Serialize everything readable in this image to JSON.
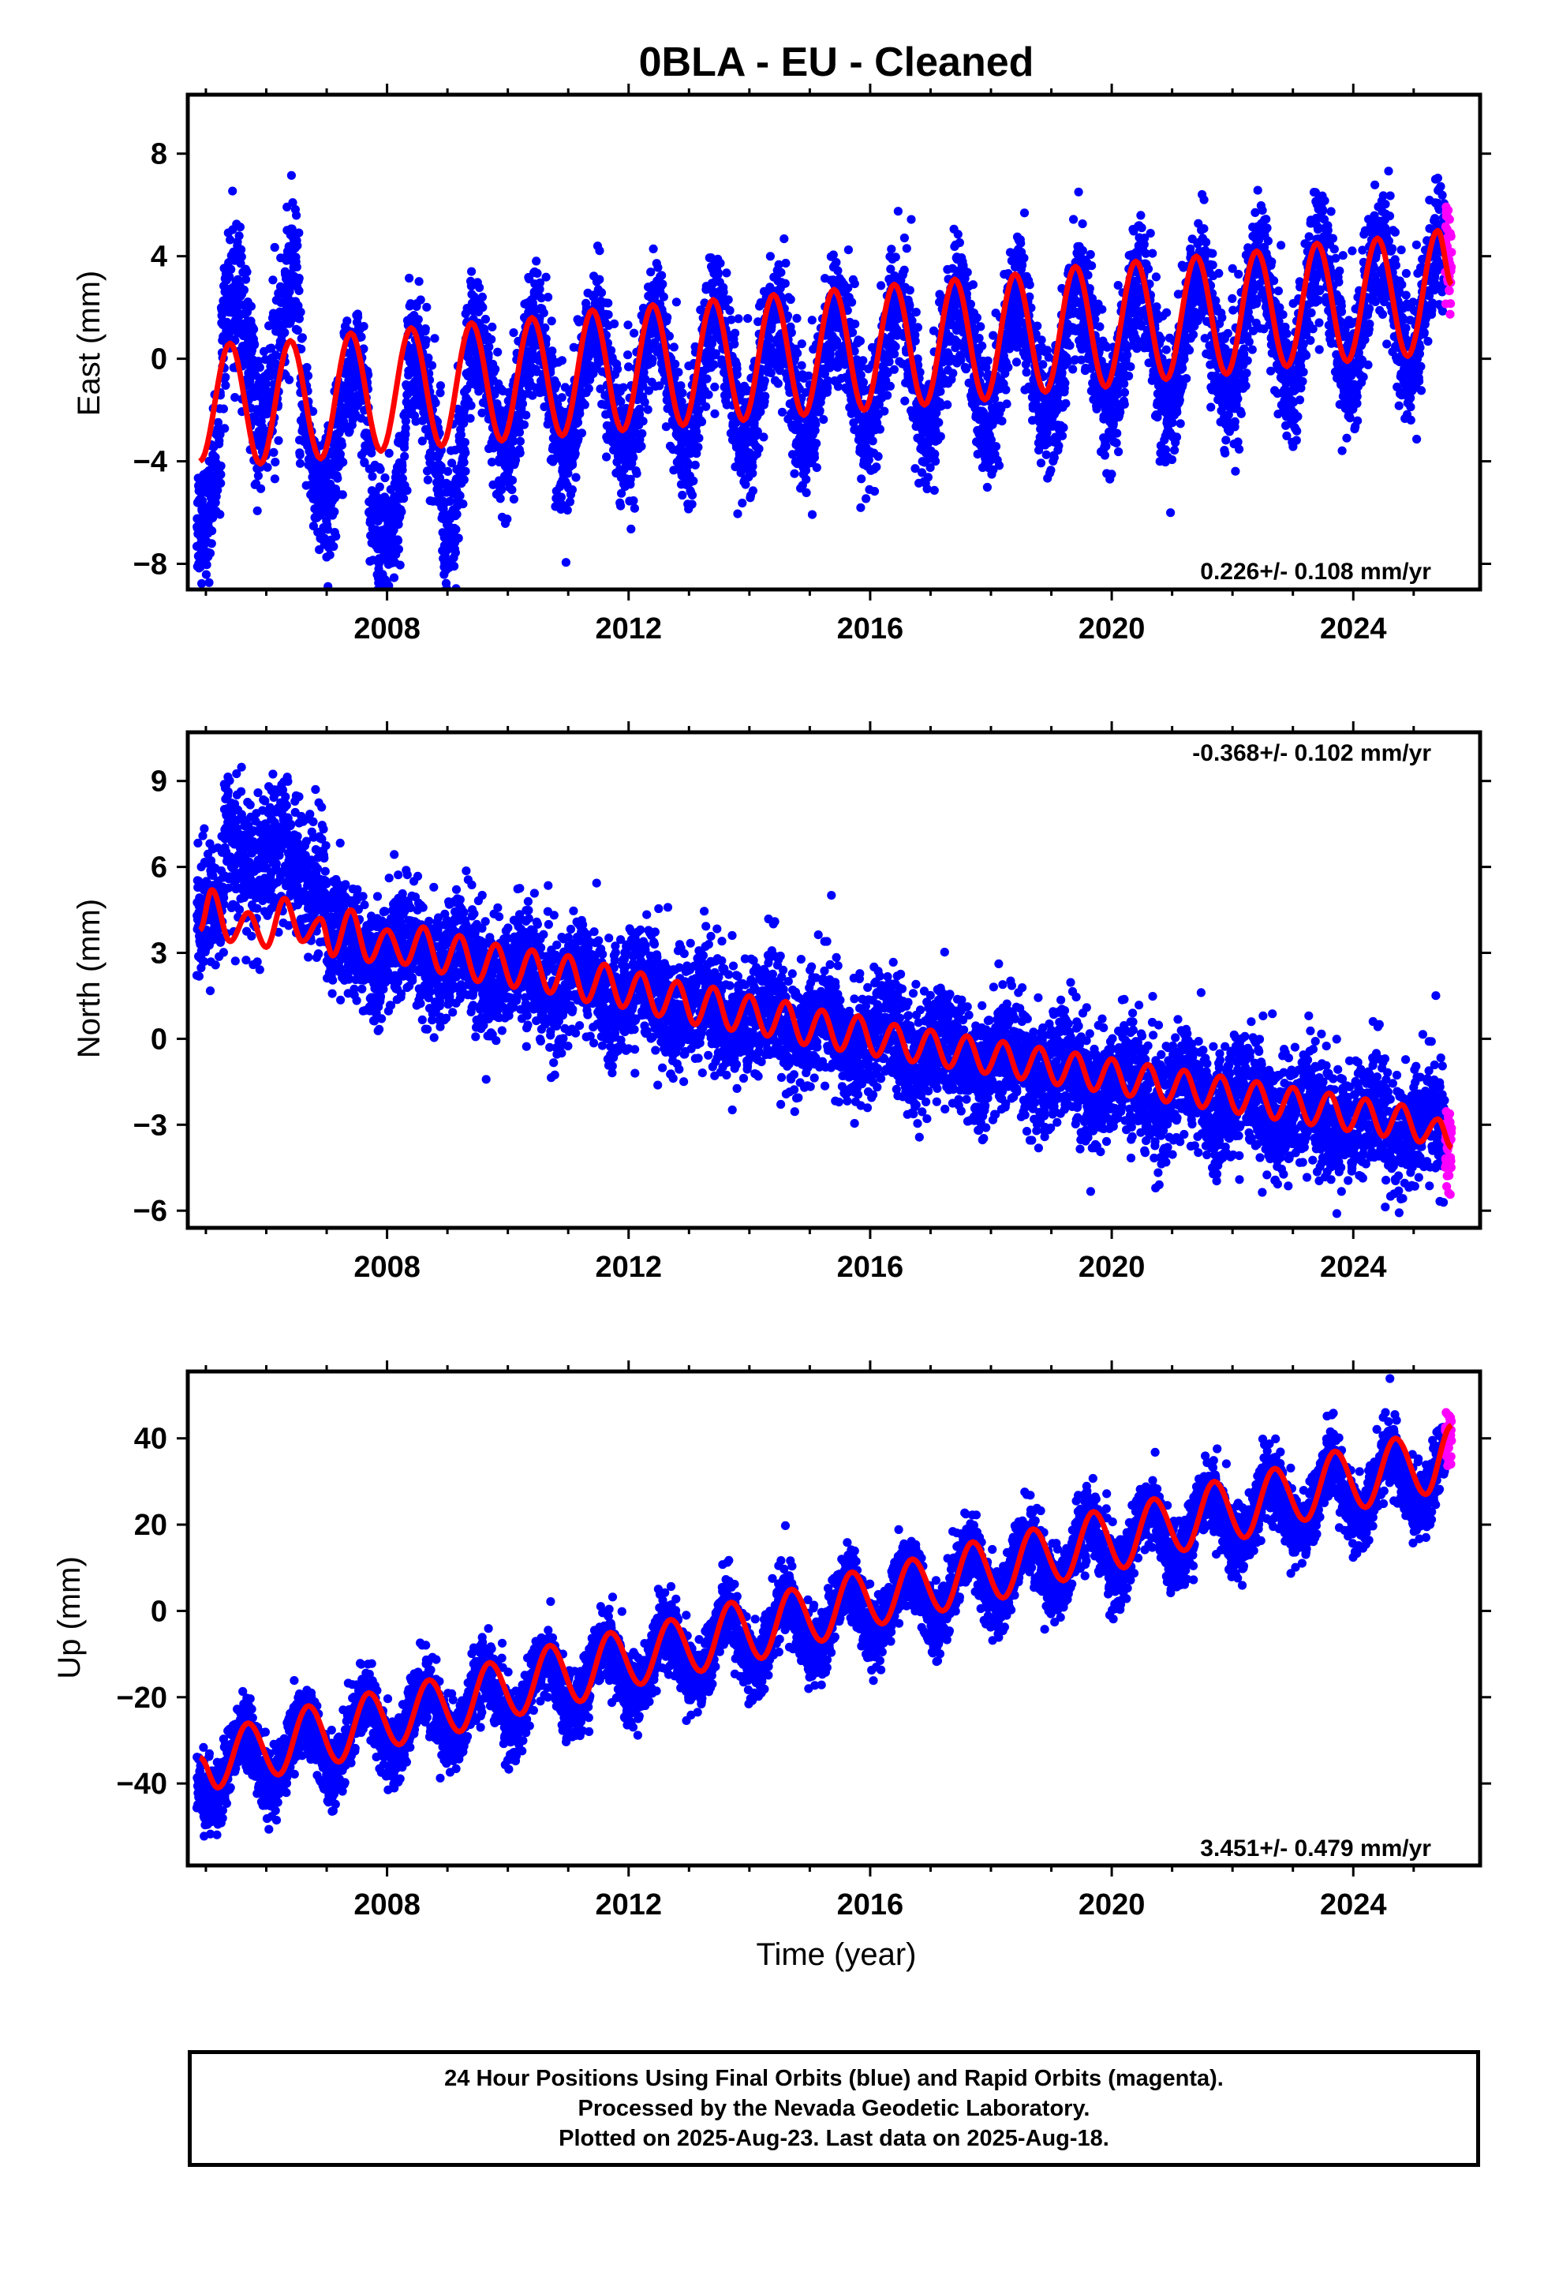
{
  "figure": {
    "title": "0BLA  - EU - Cleaned",
    "footer": [
      "24 Hour Positions Using Final Orbits (blue) and Rapid Orbits (magenta).",
      "Processed by the Nevada Geodetic Laboratory.",
      "Plotted on 2025-Aug-23. Last data on 2025-Aug-18."
    ]
  },
  "colors": {
    "final_orbits": "#0000ff",
    "rapid_orbits": "#ff00ff",
    "model_fit": "#ff0000",
    "frame": "#000000"
  },
  "chart_data": [
    {
      "type": "scatter",
      "name": "east",
      "ylabel": "East (mm)",
      "xlabel": "",
      "xlim": [
        2004.7,
        2026.1
      ],
      "ylim": [
        -9.0,
        10.3
      ],
      "xticks": [
        2008,
        2012,
        2016,
        2020,
        2024
      ],
      "yticks": [
        -8,
        -4,
        0,
        4,
        8
      ],
      "rate_label": "0.226+/- 0.108 mm/yr",
      "rate_position": "bottom-right",
      "data_start": 2004.85,
      "data_end": 2025.63,
      "rapid_start": 2025.52,
      "trend_points": [
        [
          2004.85,
          -4.0
        ],
        [
          2007.0,
          -3.0
        ],
        [
          2010.0,
          -1.4
        ],
        [
          2015.0,
          -0.5
        ],
        [
          2020.0,
          0.3
        ],
        [
          2025.63,
          2.6
        ]
      ],
      "seasonal_amplitude": 2.5,
      "seasonal_peak": 0.45,
      "scatter_sd": 1.25,
      "fit_curve": [
        [
          2004.9,
          -4.0
        ],
        [
          2005.4,
          0.6
        ],
        [
          2005.9,
          -4.1
        ],
        [
          2006.4,
          0.7
        ],
        [
          2006.9,
          -3.9
        ],
        [
          2007.4,
          1.0
        ],
        [
          2007.9,
          -3.6
        ],
        [
          2008.4,
          1.2
        ],
        [
          2008.9,
          -3.4
        ],
        [
          2009.4,
          1.4
        ],
        [
          2009.9,
          -3.2
        ],
        [
          2010.4,
          1.6
        ],
        [
          2010.9,
          -3.0
        ],
        [
          2011.4,
          1.9
        ],
        [
          2011.9,
          -2.8
        ],
        [
          2012.4,
          2.1
        ],
        [
          2012.9,
          -2.6
        ],
        [
          2013.4,
          2.3
        ],
        [
          2013.9,
          -2.4
        ],
        [
          2014.4,
          2.5
        ],
        [
          2014.9,
          -2.2
        ],
        [
          2015.4,
          2.7
        ],
        [
          2015.9,
          -2.0
        ],
        [
          2016.4,
          2.9
        ],
        [
          2016.9,
          -1.8
        ],
        [
          2017.4,
          3.1
        ],
        [
          2017.9,
          -1.6
        ],
        [
          2018.4,
          3.3
        ],
        [
          2018.9,
          -1.3
        ],
        [
          2019.4,
          3.6
        ],
        [
          2019.9,
          -1.1
        ],
        [
          2020.4,
          3.8
        ],
        [
          2020.9,
          -0.8
        ],
        [
          2021.4,
          4.0
        ],
        [
          2021.9,
          -0.6
        ],
        [
          2022.4,
          4.2
        ],
        [
          2022.9,
          -0.3
        ],
        [
          2023.4,
          4.5
        ],
        [
          2023.9,
          -0.1
        ],
        [
          2024.4,
          4.7
        ],
        [
          2024.9,
          0.1
        ],
        [
          2025.4,
          5.0
        ],
        [
          2025.63,
          2.9
        ]
      ],
      "outlier_segments": [
        {
          "x": [
            2005.25,
            2006.55
          ],
          "offset": 3.8
        },
        {
          "x": [
            2007.7,
            2008.3
          ],
          "offset": -2.5
        },
        {
          "x": [
            2008.9,
            2009.3
          ],
          "offset": -2.6
        }
      ]
    },
    {
      "type": "scatter",
      "name": "north",
      "ylabel": "North (mm)",
      "xlabel": "",
      "xlim": [
        2004.7,
        2026.1
      ],
      "ylim": [
        -6.6,
        10.7
      ],
      "xticks": [
        2008,
        2012,
        2016,
        2020,
        2024
      ],
      "yticks": [
        -6,
        -3,
        0,
        3,
        6,
        9
      ],
      "rate_label": "-0.368+/- 0.102 mm/yr",
      "rate_position": "top-right",
      "data_start": 2004.85,
      "data_end": 2025.63,
      "rapid_start": 2025.52,
      "trend_points": [
        [
          2004.85,
          4.3
        ],
        [
          2007.0,
          3.4
        ],
        [
          2010.0,
          2.3
        ],
        [
          2015.0,
          0.4
        ],
        [
          2020.0,
          -1.6
        ],
        [
          2025.63,
          -3.3
        ]
      ],
      "seasonal_amplitude": 0.6,
      "seasonal_peak": 0.25,
      "scatter_sd": 1.0,
      "fit_curve": [
        [
          2004.9,
          3.8
        ],
        [
          2005.1,
          5.2
        ],
        [
          2005.4,
          3.4
        ],
        [
          2005.7,
          4.4
        ],
        [
          2006.0,
          3.2
        ],
        [
          2006.3,
          4.9
        ],
        [
          2006.6,
          3.4
        ],
        [
          2006.9,
          4.2
        ],
        [
          2007.1,
          2.9
        ],
        [
          2007.4,
          4.5
        ],
        [
          2007.7,
          2.7
        ],
        [
          2008.0,
          3.8
        ],
        [
          2008.3,
          2.6
        ],
        [
          2008.6,
          3.9
        ],
        [
          2008.9,
          2.3
        ],
        [
          2009.2,
          3.6
        ],
        [
          2009.5,
          2.0
        ],
        [
          2009.8,
          3.3
        ],
        [
          2010.1,
          1.8
        ],
        [
          2010.4,
          3.1
        ],
        [
          2010.7,
          1.6
        ],
        [
          2011.0,
          2.9
        ],
        [
          2011.3,
          1.3
        ],
        [
          2011.6,
          2.6
        ],
        [
          2011.9,
          1.1
        ],
        [
          2012.2,
          2.3
        ],
        [
          2012.5,
          0.8
        ],
        [
          2012.8,
          2.0
        ],
        [
          2013.1,
          0.5
        ],
        [
          2013.4,
          1.8
        ],
        [
          2013.7,
          0.3
        ],
        [
          2014.0,
          1.5
        ],
        [
          2014.3,
          0.1
        ],
        [
          2014.6,
          1.3
        ],
        [
          2014.9,
          -0.2
        ],
        [
          2015.2,
          1.0
        ],
        [
          2015.5,
          -0.4
        ],
        [
          2015.8,
          0.8
        ],
        [
          2016.1,
          -0.6
        ],
        [
          2016.4,
          0.5
        ],
        [
          2016.7,
          -0.8
        ],
        [
          2017.0,
          0.3
        ],
        [
          2017.3,
          -1.0
        ],
        [
          2017.6,
          0.1
        ],
        [
          2017.9,
          -1.2
        ],
        [
          2018.2,
          -0.1
        ],
        [
          2018.5,
          -1.4
        ],
        [
          2018.8,
          -0.3
        ],
        [
          2019.1,
          -1.6
        ],
        [
          2019.4,
          -0.5
        ],
        [
          2019.7,
          -1.8
        ],
        [
          2020.0,
          -0.7
        ],
        [
          2020.3,
          -2.0
        ],
        [
          2020.6,
          -0.9
        ],
        [
          2020.9,
          -2.2
        ],
        [
          2021.2,
          -1.1
        ],
        [
          2021.5,
          -2.4
        ],
        [
          2021.8,
          -1.3
        ],
        [
          2022.1,
          -2.6
        ],
        [
          2022.4,
          -1.5
        ],
        [
          2022.7,
          -2.8
        ],
        [
          2023.0,
          -1.7
        ],
        [
          2023.3,
          -3.0
        ],
        [
          2023.6,
          -1.9
        ],
        [
          2023.9,
          -3.2
        ],
        [
          2024.2,
          -2.1
        ],
        [
          2024.5,
          -3.4
        ],
        [
          2024.8,
          -2.3
        ],
        [
          2025.1,
          -3.6
        ],
        [
          2025.4,
          -2.8
        ],
        [
          2025.63,
          -3.8
        ]
      ],
      "outlier_segments": [
        {
          "x": [
            2005.3,
            2007.0
          ],
          "offset": 2.4
        }
      ]
    },
    {
      "type": "scatter",
      "name": "up",
      "ylabel": "Up (mm)",
      "xlabel": "Time (year)",
      "xlim": [
        2004.7,
        2026.1
      ],
      "ylim": [
        -59.0,
        55.5
      ],
      "xticks": [
        2008,
        2012,
        2016,
        2020,
        2024
      ],
      "yticks": [
        -40,
        -20,
        0,
        20,
        40
      ],
      "rate_label": "3.451+/- 0.479 mm/yr",
      "rate_position": "bottom-right",
      "data_start": 2004.85,
      "data_end": 2025.63,
      "rapid_start": 2025.52,
      "trend_points": [
        [
          2004.85,
          -38.0
        ],
        [
          2010.0,
          -20.0
        ],
        [
          2015.0,
          -3.0
        ],
        [
          2020.0,
          15.0
        ],
        [
          2025.63,
          33.0
        ]
      ],
      "seasonal_amplitude": 7.0,
      "seasonal_peak": 0.6,
      "scatter_sd": 4.0,
      "fit_curve": [
        [
          2004.9,
          -34.0
        ],
        [
          2005.2,
          -41.0
        ],
        [
          2005.7,
          -26.0
        ],
        [
          2006.2,
          -38.0
        ],
        [
          2006.7,
          -22.0
        ],
        [
          2007.2,
          -35.0
        ],
        [
          2007.7,
          -19.0
        ],
        [
          2008.2,
          -31.0
        ],
        [
          2008.7,
          -16.0
        ],
        [
          2009.2,
          -28.0
        ],
        [
          2009.7,
          -12.0
        ],
        [
          2010.2,
          -24.0
        ],
        [
          2010.7,
          -8.0
        ],
        [
          2011.2,
          -21.0
        ],
        [
          2011.7,
          -5.0
        ],
        [
          2012.2,
          -17.0
        ],
        [
          2012.7,
          -2.0
        ],
        [
          2013.2,
          -14.0
        ],
        [
          2013.7,
          2.0
        ],
        [
          2014.2,
          -11.0
        ],
        [
          2014.7,
          5.0
        ],
        [
          2015.2,
          -7.0
        ],
        [
          2015.7,
          9.0
        ],
        [
          2016.2,
          -3.0
        ],
        [
          2016.7,
          12.0
        ],
        [
          2017.2,
          0.0
        ],
        [
          2017.7,
          16.0
        ],
        [
          2018.2,
          3.0
        ],
        [
          2018.7,
          19.0
        ],
        [
          2019.2,
          7.0
        ],
        [
          2019.7,
          23.0
        ],
        [
          2020.2,
          10.0
        ],
        [
          2020.7,
          26.0
        ],
        [
          2021.2,
          14.0
        ],
        [
          2021.7,
          30.0
        ],
        [
          2022.2,
          17.0
        ],
        [
          2022.7,
          33.0
        ],
        [
          2023.2,
          21.0
        ],
        [
          2023.7,
          37.0
        ],
        [
          2024.2,
          24.0
        ],
        [
          2024.7,
          40.0
        ],
        [
          2025.2,
          27.0
        ],
        [
          2025.63,
          43.0
        ]
      ],
      "outlier_segments": []
    }
  ]
}
